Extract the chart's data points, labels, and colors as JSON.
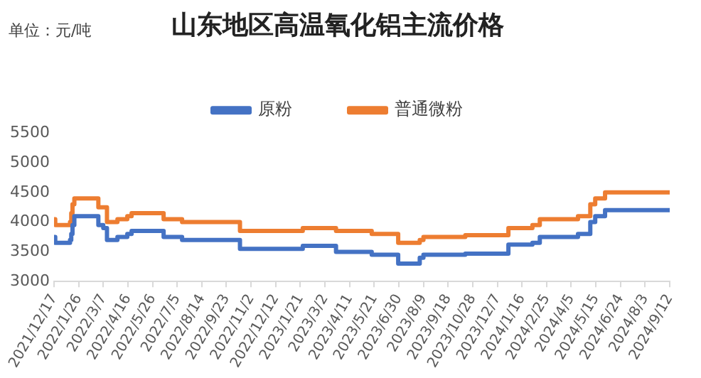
{
  "chart_data": {
    "type": "step",
    "title": "山东地区高温氧化铝主流价格",
    "annotations": [
      "单位：元/吨"
    ],
    "series": [
      {
        "name": "原粉",
        "color": "#4472c4",
        "x": [
          "2021-12-17",
          "2021-12-19",
          "2022-01-12",
          "2022-01-14",
          "2022-01-16",
          "2022-01-19",
          "2022-02-27",
          "2022-03-07",
          "2022-03-13",
          "2022-03-30",
          "2022-04-15",
          "2022-04-22",
          "2022-06-13",
          "2022-07-13",
          "2022-10-15",
          "2023-01-25",
          "2023-03-20",
          "2023-05-17",
          "2023-06-29",
          "2023-08-03",
          "2023-08-09",
          "2023-10-16",
          "2023-12-25",
          "2024-02-02",
          "2024-02-14",
          "2024-04-16",
          "2024-05-06",
          "2024-05-14",
          "2024-05-30",
          "2024-09-12"
        ],
        "values": [
          3750,
          3650,
          3700,
          3800,
          3950,
          4100,
          3950,
          3900,
          3700,
          3750,
          3800,
          3850,
          3750,
          3700,
          3550,
          3600,
          3500,
          3450,
          3300,
          3400,
          3450,
          3470,
          3620,
          3650,
          3750,
          3800,
          4000,
          4100,
          4200,
          4200
        ]
      },
      {
        "name": "普通微粉",
        "color": "#ed7d31",
        "x": [
          "2021-12-17",
          "2021-12-19",
          "2022-01-12",
          "2022-01-14",
          "2022-01-16",
          "2022-01-19",
          "2022-02-27",
          "2022-03-13",
          "2022-03-30",
          "2022-04-15",
          "2022-04-22",
          "2022-06-13",
          "2022-07-13",
          "2022-10-15",
          "2023-01-25",
          "2023-03-20",
          "2023-05-17",
          "2023-06-29",
          "2023-08-03",
          "2023-08-09",
          "2023-10-16",
          "2023-12-25",
          "2024-02-02",
          "2024-02-14",
          "2024-04-16",
          "2024-05-06",
          "2024-05-14",
          "2024-05-30",
          "2024-09-12"
        ],
        "values": [
          4050,
          3950,
          4000,
          4150,
          4300,
          4400,
          4250,
          4000,
          4050,
          4100,
          4150,
          4050,
          4000,
          3850,
          3900,
          3850,
          3800,
          3650,
          3700,
          3750,
          3780,
          3900,
          3950,
          4050,
          4100,
          4300,
          4400,
          4500,
          4500
        ]
      }
    ],
    "xlim": [
      "2021-12-17",
      "2024-09-12"
    ],
    "xticks": [
      {
        "value": "2021-12-17",
        "label": "2021/12/17"
      },
      {
        "value": "2022-01-26",
        "label": "2022/1/26"
      },
      {
        "value": "2022-03-07",
        "label": "2022/3/7"
      },
      {
        "value": "2022-04-16",
        "label": "2022/4/16"
      },
      {
        "value": "2022-05-26",
        "label": "2022/5/26"
      },
      {
        "value": "2022-07-05",
        "label": "2022/7/5"
      },
      {
        "value": "2022-08-14",
        "label": "2022/8/14"
      },
      {
        "value": "2022-09-23",
        "label": "2022/9/23"
      },
      {
        "value": "2022-11-02",
        "label": "2022/11/2"
      },
      {
        "value": "2022-12-12",
        "label": "2022/12/12"
      },
      {
        "value": "2023-01-21",
        "label": "2023/1/21"
      },
      {
        "value": "2023-03-02",
        "label": "2023/3/2"
      },
      {
        "value": "2023-04-11",
        "label": "2023/4/11"
      },
      {
        "value": "2023-05-21",
        "label": "2023/5/21"
      },
      {
        "value": "2023-06-30",
        "label": "2023/6/30"
      },
      {
        "value": "2023-08-09",
        "label": "2023/8/9"
      },
      {
        "value": "2023-09-18",
        "label": "2023/9/18"
      },
      {
        "value": "2023-10-28",
        "label": "2023/10/28"
      },
      {
        "value": "2023-12-07",
        "label": "2023/12/7"
      },
      {
        "value": "2024-01-16",
        "label": "2024/1/16"
      },
      {
        "value": "2024-02-25",
        "label": "2024/2/25"
      },
      {
        "value": "2024-04-05",
        "label": "2024/4/5"
      },
      {
        "value": "2024-05-15",
        "label": "2024/5/15"
      },
      {
        "value": "2024-06-24",
        "label": "2024/6/24"
      },
      {
        "value": "2024-08-03",
        "label": "2024/8/3"
      },
      {
        "value": "2024-09-12",
        "label": "2024/9/12"
      }
    ],
    "ylim": [
      3000,
      5500
    ],
    "yticks": [
      3000,
      3500,
      4000,
      4500,
      5000,
      5500
    ],
    "grid": false,
    "legend": "top",
    "marker": "none",
    "line_style": "solid"
  }
}
